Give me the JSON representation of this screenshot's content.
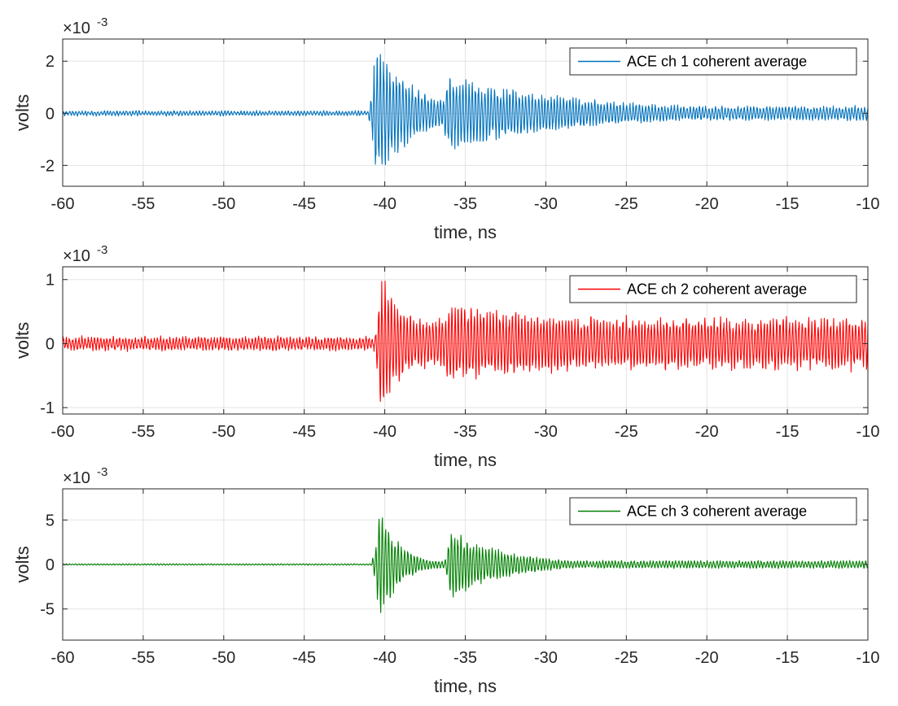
{
  "chart_data": [
    {
      "type": "line",
      "xlabel": "time, ns",
      "ylabel": "volts",
      "xlim": [
        -60,
        -10
      ],
      "ylim": [
        -2.8,
        2.85
      ],
      "xticks": [
        -60,
        -55,
        -50,
        -45,
        -40,
        -35,
        -30,
        -25,
        -20,
        -15,
        -10
      ],
      "xtick_labels": [
        "-60",
        "-55",
        "-50",
        "-45",
        "-40",
        "-35",
        "-30",
        "-25",
        "-20",
        "-15",
        "-10"
      ],
      "yticks": [
        -2,
        0,
        2
      ],
      "ytick_labels": [
        "-2",
        "0",
        "2"
      ],
      "y_exponent_base": "×10",
      "y_exponent_power": "-3",
      "grid": true,
      "legend_position": "top-right",
      "series": [
        {
          "name": "ACE ch 1 coherent average",
          "color": "#0072BD",
          "envelope": {
            "baseline": 0.09,
            "first_arrival_ns": -40.6,
            "first_peak": 2.8,
            "first_decay_ns": 2.5,
            "second_arrival_ns": -36.2,
            "second_peak": 1.5,
            "second_decay_ns": 9.0,
            "late_level": 0.28
          }
        }
      ]
    },
    {
      "type": "line",
      "xlabel": "time, ns",
      "ylabel": "volts",
      "xlim": [
        -60,
        -10
      ],
      "ylim": [
        -1.1,
        1.2
      ],
      "xticks": [
        -60,
        -55,
        -50,
        -45,
        -40,
        -35,
        -30,
        -25,
        -20,
        -15,
        -10
      ],
      "xtick_labels": [
        "-60",
        "-55",
        "-50",
        "-45",
        "-40",
        "-35",
        "-30",
        "-25",
        "-20",
        "-15",
        "-10"
      ],
      "yticks": [
        -1,
        0,
        1
      ],
      "ytick_labels": [
        "-1",
        "0",
        "1"
      ],
      "y_exponent_base": "×10",
      "y_exponent_power": "-3",
      "grid": true,
      "legend_position": "top-right",
      "series": [
        {
          "name": "ACE ch 2 coherent average",
          "color": "#FF0000",
          "envelope": {
            "baseline": 0.1,
            "first_arrival_ns": -40.3,
            "first_peak": 1.15,
            "first_decay_ns": 2.0,
            "second_arrival_ns": -36.2,
            "second_peak": 0.6,
            "second_decay_ns": 25.0,
            "late_level": 0.42
          }
        }
      ]
    },
    {
      "type": "line",
      "xlabel": "time, ns",
      "ylabel": "volts",
      "xlim": [
        -60,
        -10
      ],
      "ylim": [
        -8.5,
        8.5
      ],
      "xticks": [
        -60,
        -55,
        -50,
        -45,
        -40,
        -35,
        -30,
        -25,
        -20,
        -15,
        -10
      ],
      "xtick_labels": [
        "-60",
        "-55",
        "-50",
        "-45",
        "-40",
        "-35",
        "-30",
        "-25",
        "-20",
        "-15",
        "-10"
      ],
      "yticks": [
        -5,
        0,
        5
      ],
      "ytick_labels": [
        "-5",
        "0",
        "5"
      ],
      "y_exponent_base": "×10",
      "y_exponent_power": "-3",
      "grid": true,
      "legend_position": "top-right",
      "series": [
        {
          "name": "ACE ch 3 coherent average",
          "color": "#008000",
          "envelope": {
            "baseline": 0.08,
            "first_arrival_ns": -40.4,
            "first_peak": 7.0,
            "first_decay_ns": 1.3,
            "second_arrival_ns": -36.0,
            "second_peak": 4.2,
            "second_decay_ns": 3.5,
            "late_level": 0.45
          }
        }
      ]
    }
  ]
}
